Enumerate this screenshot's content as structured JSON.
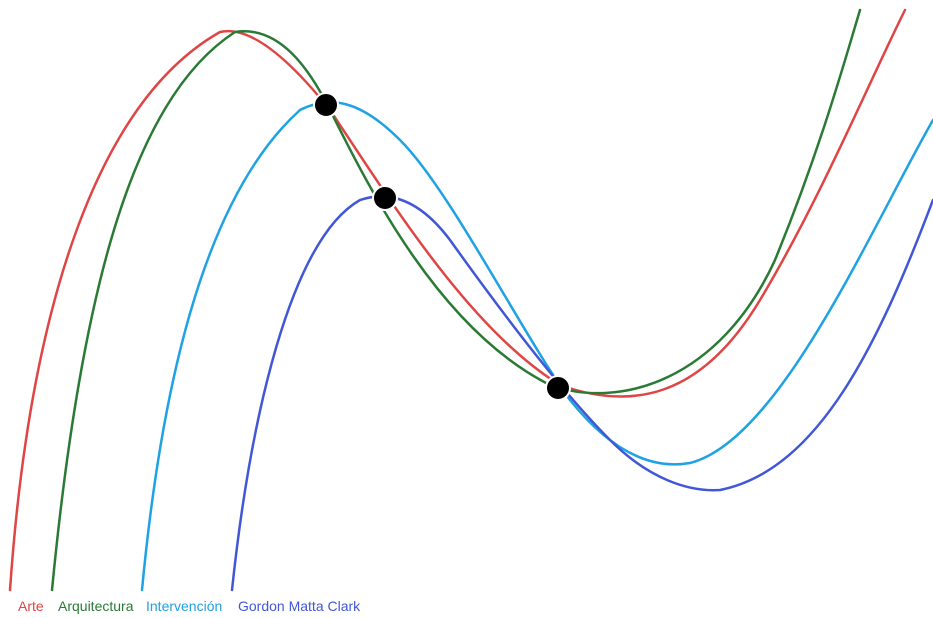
{
  "curves": [
    {
      "id": "arte",
      "label": "Arte",
      "color": "#e04545"
    },
    {
      "id": "arquitectura",
      "label": "Arquitectura",
      "color": "#2a7a35"
    },
    {
      "id": "intervencion",
      "label": "Intervención",
      "color": "#1fa2e3"
    },
    {
      "id": "gmc",
      "label": "Gordon Matta Clark",
      "color": "#4257d6"
    }
  ],
  "node_color": "#000000"
}
